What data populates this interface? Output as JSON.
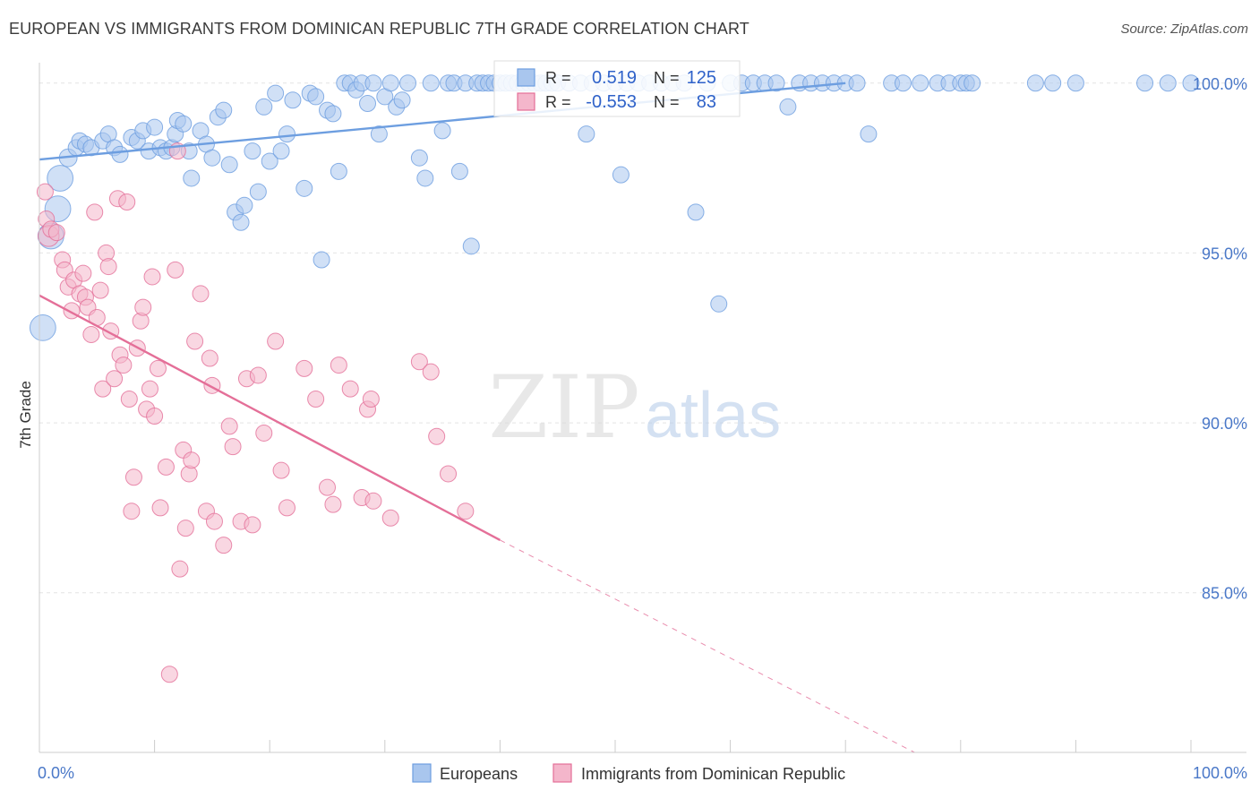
{
  "chart_data": {
    "type": "scatter",
    "title": "EUROPEAN VS IMMIGRANTS FROM DOMINICAN REPUBLIC 7TH GRADE CORRELATION CHART",
    "source": "Source: ZipAtlas.com",
    "xlabel": "",
    "ylabel": "7th Grade",
    "xlim": [
      0,
      100
    ],
    "ylim": [
      80.3,
      100.6
    ],
    "x_tick_labels": [
      {
        "value": 0,
        "label": "0.0%"
      },
      {
        "value": 100,
        "label": "100.0%"
      }
    ],
    "y_tick_labels": [
      {
        "value": 100,
        "label": "100.0%"
      },
      {
        "value": 95,
        "label": "95.0%"
      },
      {
        "value": 90,
        "label": "90.0%"
      },
      {
        "value": 85,
        "label": "85.0%"
      }
    ],
    "watermark": {
      "part1": "ZIP",
      "part2": "atlas"
    },
    "stats": {
      "r_label": "R =",
      "n_label": "N =",
      "rows": [
        {
          "r": "0.519",
          "n": "125"
        },
        {
          "r": "-0.553",
          "n": "83"
        }
      ]
    },
    "series": [
      {
        "name": "Europeans",
        "color": "#6d9ee0",
        "fill": "#a9c6ee",
        "trend": {
          "x1": 0,
          "y1": 97.75,
          "x2": 70,
          "y2": 100.0,
          "dashed_to": null
        },
        "points": [
          [
            0.3,
            92.8,
            1.6
          ],
          [
            1.0,
            95.5,
            1.6
          ],
          [
            1.6,
            96.3,
            1.6
          ],
          [
            1.8,
            97.2,
            1.6
          ],
          [
            2.5,
            97.8,
            1.1
          ],
          [
            3.2,
            98.1,
            1.0
          ],
          [
            3.5,
            98.3,
            1.0
          ],
          [
            4.0,
            98.2,
            1.0
          ],
          [
            4.5,
            98.1,
            1.0
          ],
          [
            5.5,
            98.3,
            1.0
          ],
          [
            6.0,
            98.5,
            1.0
          ],
          [
            6.5,
            98.1,
            1.0
          ],
          [
            7.0,
            97.9,
            1.0
          ],
          [
            8.0,
            98.4,
            1.0
          ],
          [
            8.5,
            98.3,
            1.0
          ],
          [
            9.0,
            98.6,
            1.0
          ],
          [
            9.5,
            98.0,
            1.0
          ],
          [
            10.0,
            98.7,
            1.0
          ],
          [
            10.5,
            98.1,
            1.0
          ],
          [
            11.0,
            98.0,
            1.0
          ],
          [
            11.5,
            98.1,
            1.0
          ],
          [
            11.8,
            98.5,
            1.0
          ],
          [
            12.0,
            98.9,
            1.0
          ],
          [
            12.5,
            98.8,
            1.0
          ],
          [
            13.0,
            98.0,
            1.0
          ],
          [
            13.2,
            97.2,
            1.0
          ],
          [
            14.0,
            98.6,
            1.0
          ],
          [
            14.5,
            98.2,
            1.0
          ],
          [
            15.0,
            97.8,
            1.0
          ],
          [
            15.5,
            99.0,
            1.0
          ],
          [
            16.0,
            99.2,
            1.0
          ],
          [
            16.5,
            97.6,
            1.0
          ],
          [
            17.0,
            96.2,
            1.0
          ],
          [
            17.5,
            95.9,
            1.0
          ],
          [
            17.8,
            96.4,
            1.0
          ],
          [
            18.5,
            98.0,
            1.0
          ],
          [
            19.0,
            96.8,
            1.0
          ],
          [
            19.5,
            99.3,
            1.0
          ],
          [
            20.0,
            97.7,
            1.0
          ],
          [
            20.5,
            99.7,
            1.0
          ],
          [
            21.0,
            98.0,
            1.0
          ],
          [
            21.5,
            98.5,
            1.0
          ],
          [
            22.0,
            99.5,
            1.0
          ],
          [
            23.0,
            96.9,
            1.0
          ],
          [
            23.5,
            99.7,
            1.0
          ],
          [
            24.0,
            99.6,
            1.0
          ],
          [
            24.5,
            94.8,
            1.0
          ],
          [
            25.0,
            99.2,
            1.0
          ],
          [
            25.5,
            99.1,
            1.0
          ],
          [
            26.0,
            97.4,
            1.0
          ],
          [
            26.5,
            100.0,
            1.0
          ],
          [
            27.0,
            100.0,
            1.0
          ],
          [
            27.5,
            99.8,
            1.0
          ],
          [
            28.0,
            100.0,
            1.0
          ],
          [
            28.5,
            99.4,
            1.0
          ],
          [
            29.0,
            100.0,
            1.0
          ],
          [
            29.5,
            98.5,
            1.0
          ],
          [
            30.0,
            99.6,
            1.0
          ],
          [
            30.5,
            100.0,
            1.0
          ],
          [
            31.0,
            99.3,
            1.0
          ],
          [
            31.5,
            99.5,
            1.0
          ],
          [
            32.0,
            100.0,
            1.0
          ],
          [
            33.0,
            97.8,
            1.0
          ],
          [
            33.5,
            97.2,
            1.0
          ],
          [
            34.0,
            100.0,
            1.0
          ],
          [
            35.0,
            98.6,
            1.0
          ],
          [
            35.5,
            100.0,
            1.0
          ],
          [
            36.0,
            100.0,
            1.0
          ],
          [
            36.5,
            97.4,
            1.0
          ],
          [
            37.0,
            100.0,
            1.0
          ],
          [
            37.5,
            95.2,
            1.0
          ],
          [
            38.0,
            100.0,
            1.0
          ],
          [
            38.5,
            100.0,
            1.0
          ],
          [
            39.0,
            100.0,
            1.0
          ],
          [
            39.5,
            100.0,
            1.0
          ],
          [
            40.0,
            100.0,
            1.0
          ],
          [
            40.5,
            100.0,
            1.0
          ],
          [
            41.0,
            100.0,
            1.0
          ],
          [
            41.5,
            100.0,
            1.0
          ],
          [
            42.0,
            100.0,
            1.0
          ],
          [
            42.5,
            100.0,
            1.0
          ],
          [
            43.0,
            100.0,
            1.0
          ],
          [
            43.5,
            100.0,
            1.0
          ],
          [
            44.0,
            100.0,
            1.0
          ],
          [
            44.5,
            100.0,
            1.0
          ],
          [
            45.0,
            100.0,
            1.0
          ],
          [
            46.0,
            100.0,
            1.0
          ],
          [
            47.0,
            100.0,
            1.0
          ],
          [
            47.5,
            98.5,
            1.0
          ],
          [
            48.0,
            100.0,
            1.0
          ],
          [
            49.0,
            100.0,
            1.0
          ],
          [
            50.0,
            100.0,
            1.0
          ],
          [
            50.5,
            97.3,
            1.0
          ],
          [
            51.0,
            100.0,
            1.0
          ],
          [
            52.0,
            100.0,
            1.0
          ],
          [
            53.0,
            100.0,
            1.0
          ],
          [
            54.0,
            100.0,
            1.0
          ],
          [
            55.0,
            100.0,
            1.0
          ],
          [
            56.0,
            100.0,
            1.0
          ],
          [
            57.0,
            96.2,
            1.0
          ],
          [
            58.0,
            100.0,
            1.0
          ],
          [
            59.0,
            93.5,
            1.0
          ],
          [
            60.0,
            100.0,
            1.0
          ],
          [
            61.0,
            100.0,
            1.0
          ],
          [
            62.0,
            100.0,
            1.0
          ],
          [
            63.0,
            100.0,
            1.0
          ],
          [
            64.0,
            100.0,
            1.0
          ],
          [
            65.0,
            99.3,
            1.0
          ],
          [
            66.0,
            100.0,
            1.0
          ],
          [
            67.0,
            100.0,
            1.0
          ],
          [
            68.0,
            100.0,
            1.0
          ],
          [
            69.0,
            100.0,
            1.0
          ],
          [
            70.0,
            100.0,
            1.0
          ],
          [
            71.0,
            100.0,
            1.0
          ],
          [
            72.0,
            98.5,
            1.0
          ],
          [
            74.0,
            100.0,
            1.0
          ],
          [
            75.0,
            100.0,
            1.0
          ],
          [
            76.5,
            100.0,
            1.0
          ],
          [
            78.0,
            100.0,
            1.0
          ],
          [
            79.0,
            100.0,
            1.0
          ],
          [
            80.0,
            100.0,
            1.0
          ],
          [
            80.5,
            100.0,
            1.0
          ],
          [
            81.0,
            100.0,
            1.0
          ],
          [
            86.5,
            100.0,
            1.0
          ],
          [
            88.0,
            100.0,
            1.0
          ],
          [
            90.0,
            100.0,
            1.0
          ],
          [
            96.0,
            100.0,
            1.0
          ],
          [
            98.0,
            100.0,
            1.0
          ],
          [
            100.0,
            100.0,
            1.0
          ]
        ]
      },
      {
        "name": "Immigrants from Dominican Republic",
        "color": "#e46f98",
        "fill": "#f4b6cb",
        "trend": {
          "x1": 0,
          "y1": 93.75,
          "x2": 40,
          "y2": 86.55,
          "dashed_to": {
            "x": 76,
            "y": 80.3
          }
        },
        "points": [
          [
            0.5,
            96.8,
            1.0
          ],
          [
            0.6,
            96.0,
            1.0
          ],
          [
            0.8,
            95.5,
            1.3
          ],
          [
            1.0,
            95.7,
            1.0
          ],
          [
            1.5,
            95.6,
            1.0
          ],
          [
            2.0,
            94.8,
            1.0
          ],
          [
            2.2,
            94.5,
            1.0
          ],
          [
            2.5,
            94.0,
            1.0
          ],
          [
            2.8,
            93.3,
            1.0
          ],
          [
            3.0,
            94.2,
            1.0
          ],
          [
            3.5,
            93.8,
            1.0
          ],
          [
            3.8,
            94.4,
            1.0
          ],
          [
            4.0,
            93.7,
            1.0
          ],
          [
            4.2,
            93.4,
            1.0
          ],
          [
            4.5,
            92.6,
            1.0
          ],
          [
            4.8,
            96.2,
            1.0
          ],
          [
            5.0,
            93.1,
            1.0
          ],
          [
            5.3,
            93.9,
            1.0
          ],
          [
            5.5,
            91.0,
            1.0
          ],
          [
            5.8,
            95.0,
            1.0
          ],
          [
            6.0,
            94.6,
            1.0
          ],
          [
            6.2,
            92.7,
            1.0
          ],
          [
            6.5,
            91.3,
            1.0
          ],
          [
            6.8,
            96.6,
            1.0
          ],
          [
            7.0,
            92.0,
            1.0
          ],
          [
            7.3,
            91.7,
            1.0
          ],
          [
            7.6,
            96.5,
            1.0
          ],
          [
            7.8,
            90.7,
            1.0
          ],
          [
            8.0,
            87.4,
            1.0
          ],
          [
            8.2,
            88.4,
            1.0
          ],
          [
            8.5,
            92.2,
            1.0
          ],
          [
            8.8,
            93.0,
            1.0
          ],
          [
            9.0,
            93.4,
            1.0
          ],
          [
            9.3,
            90.4,
            1.0
          ],
          [
            9.6,
            91.0,
            1.0
          ],
          [
            9.8,
            94.3,
            1.0
          ],
          [
            10.0,
            90.2,
            1.0
          ],
          [
            10.3,
            91.6,
            1.0
          ],
          [
            10.5,
            87.5,
            1.0
          ],
          [
            11.0,
            88.7,
            1.0
          ],
          [
            11.3,
            82.6,
            1.0
          ],
          [
            11.8,
            94.5,
            1.0
          ],
          [
            12.0,
            98.0,
            1.0
          ],
          [
            12.2,
            85.7,
            1.0
          ],
          [
            12.5,
            89.2,
            1.0
          ],
          [
            12.7,
            86.9,
            1.0
          ],
          [
            13.0,
            88.5,
            1.0
          ],
          [
            13.2,
            88.9,
            1.0
          ],
          [
            13.5,
            92.4,
            1.0
          ],
          [
            14.0,
            93.8,
            1.0
          ],
          [
            14.5,
            87.4,
            1.0
          ],
          [
            14.8,
            91.9,
            1.0
          ],
          [
            15.0,
            91.1,
            1.0
          ],
          [
            15.2,
            87.1,
            1.0
          ],
          [
            16.0,
            86.4,
            1.0
          ],
          [
            16.5,
            89.9,
            1.0
          ],
          [
            16.8,
            89.3,
            1.0
          ],
          [
            17.5,
            87.1,
            1.0
          ],
          [
            18.0,
            91.3,
            1.0
          ],
          [
            18.5,
            87.0,
            1.0
          ],
          [
            19.0,
            91.4,
            1.0
          ],
          [
            19.5,
            89.7,
            1.0
          ],
          [
            20.5,
            92.4,
            1.0
          ],
          [
            21.0,
            88.6,
            1.0
          ],
          [
            21.5,
            87.5,
            1.0
          ],
          [
            23.0,
            91.6,
            1.0
          ],
          [
            24.0,
            90.7,
            1.0
          ],
          [
            25.0,
            88.1,
            1.0
          ],
          [
            25.5,
            87.6,
            1.0
          ],
          [
            26.0,
            91.7,
            1.0
          ],
          [
            27.0,
            91.0,
            1.0
          ],
          [
            28.0,
            87.8,
            1.0
          ],
          [
            28.5,
            90.4,
            1.0
          ],
          [
            28.8,
            90.7,
            1.0
          ],
          [
            29.0,
            87.7,
            1.0
          ],
          [
            30.5,
            87.2,
            1.0
          ],
          [
            33.0,
            91.8,
            1.0
          ],
          [
            34.0,
            91.5,
            1.0
          ],
          [
            34.5,
            89.6,
            1.0
          ],
          [
            35.5,
            88.5,
            1.0
          ],
          [
            37.0,
            87.4,
            1.0
          ]
        ]
      }
    ]
  }
}
